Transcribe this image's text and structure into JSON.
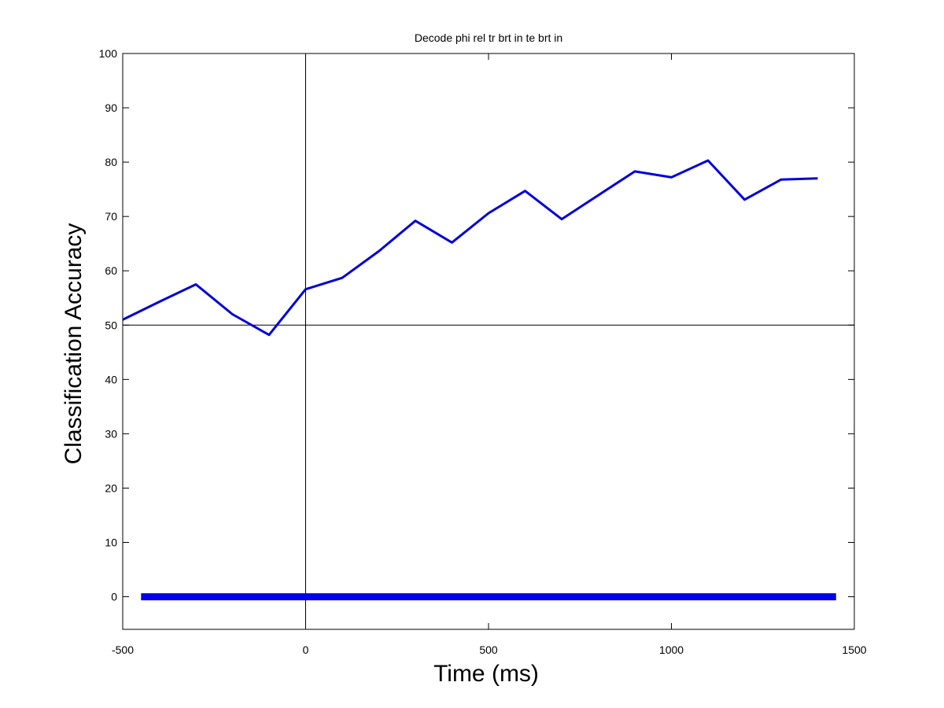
{
  "chart_data": {
    "type": "line",
    "title": "Decode phi rel tr brt in te brt in",
    "xlabel": "Time (ms)",
    "ylabel": "Classification Accuracy",
    "xlim": [
      -500,
      1500
    ],
    "ylim": [
      -6,
      100
    ],
    "xticks": [
      -500,
      0,
      500,
      1000,
      1500
    ],
    "yticks": [
      0,
      10,
      20,
      30,
      40,
      50,
      60,
      70,
      80,
      90,
      100
    ],
    "grid": false,
    "reference_lines": {
      "vertical_x": 0,
      "horizontal_y": 50
    },
    "series": [
      {
        "color": "#0000dd",
        "x": [
          -500,
          -400,
          -300,
          -200,
          -100,
          0,
          100,
          200,
          300,
          400,
          500,
          600,
          700,
          800,
          900,
          1000,
          1100,
          1200,
          1300,
          1400
        ],
        "values": [
          51,
          54.3,
          57.5,
          52,
          48.2,
          56.6,
          58.7,
          63.6,
          69.2,
          65.2,
          70.6,
          74.7,
          69.5,
          73.9,
          78.3,
          77.2,
          80.3,
          73.1,
          76.8,
          77
        ]
      },
      {
        "color": "#0000ee",
        "x": [
          -450,
          1450
        ],
        "values": [
          0,
          0
        ]
      }
    ]
  }
}
